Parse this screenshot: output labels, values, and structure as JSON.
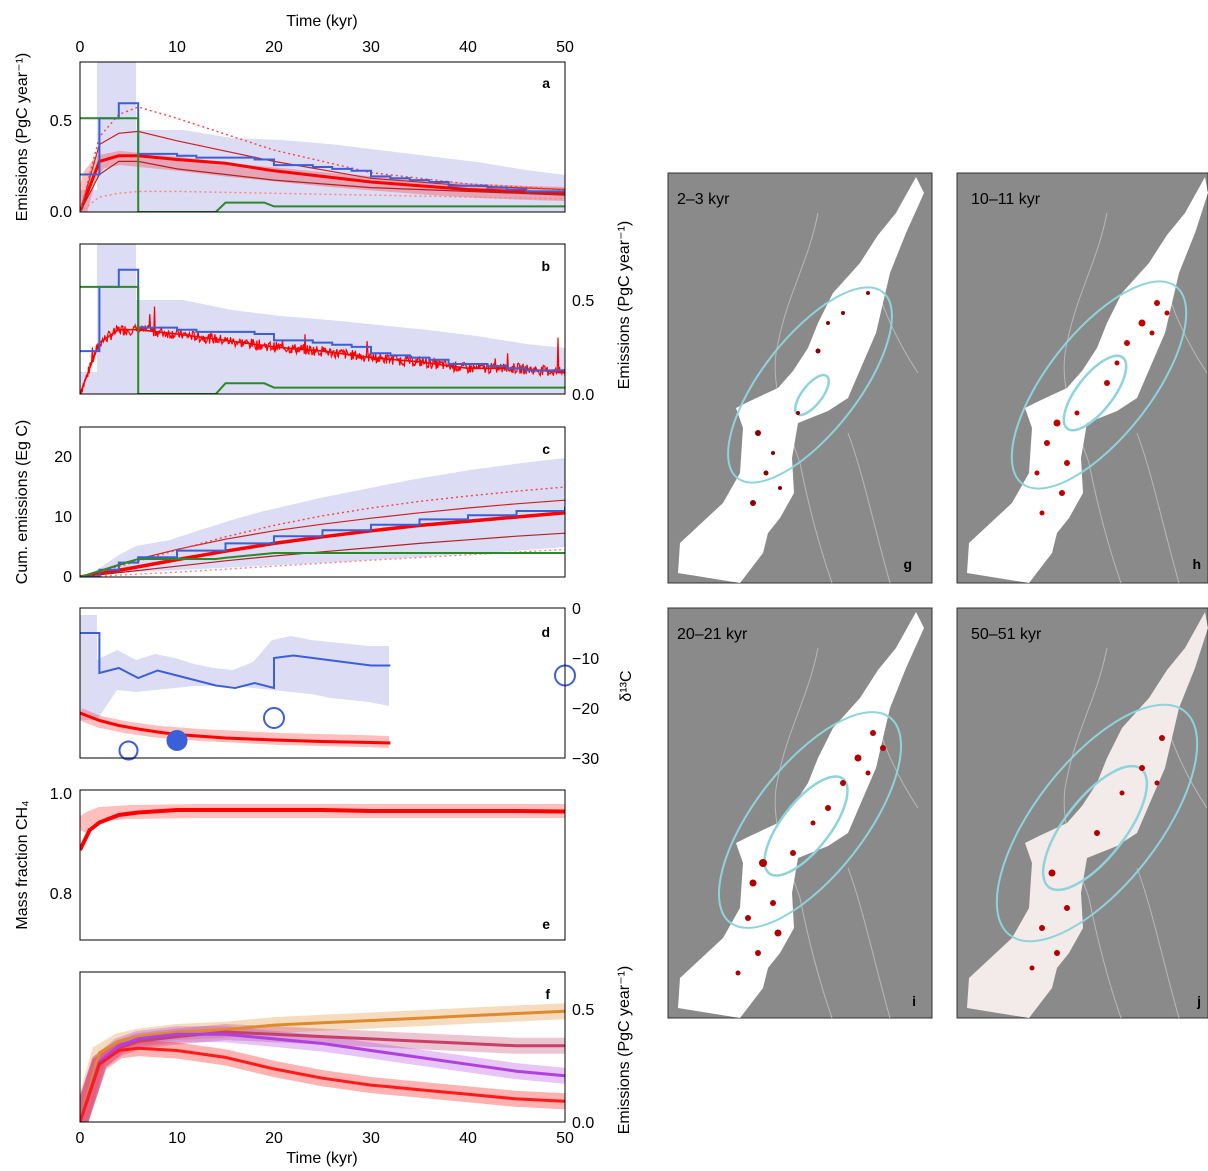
{
  "figure": {
    "time_axis_label": "Time (kyr)",
    "time_ticks": [
      "0",
      "10",
      "20",
      "30",
      "40",
      "50"
    ]
  },
  "colors": {
    "model_red": "#ff0000",
    "model_dark_red": "#b22222",
    "obs_blue": "#3a5fd9",
    "band_lavender": "#dcdcf5",
    "green": "#2a8a2a",
    "orange": "#e08a2c",
    "purple": "#b040e0",
    "map_bg": "#8a8a8a",
    "map_ellipse": "#8fd3dc"
  },
  "chart_data": [
    {
      "panel": "a",
      "type": "line",
      "ylabel": "Emissions (PgC year⁻¹)",
      "yticks": [
        "0.0",
        "0.5"
      ],
      "xlim": [
        0,
        50
      ],
      "ylim": [
        0,
        0.8
      ],
      "series": [
        {
          "x": [
            0,
            2,
            4,
            6,
            10,
            15,
            20,
            25,
            30,
            35,
            40,
            45,
            50
          ],
          "y": [
            0,
            0.27,
            0.3,
            0.3,
            0.28,
            0.26,
            0.22,
            0.19,
            0.16,
            0.14,
            0.12,
            0.11,
            0.1
          ]
        },
        {
          "x": [
            0,
            2,
            4,
            6,
            10,
            20,
            30,
            40,
            50
          ],
          "y": [
            0,
            0.36,
            0.42,
            0.43,
            0.38,
            0.27,
            0.18,
            0.14,
            0.12
          ]
        },
        {
          "x": [
            0,
            2,
            4,
            6,
            10,
            20,
            30,
            40,
            50
          ],
          "y": [
            0,
            0.2,
            0.27,
            0.27,
            0.23,
            0.17,
            0.13,
            0.11,
            0.09
          ]
        },
        {
          "x": [
            0,
            2,
            4,
            6,
            10,
            20,
            30,
            40,
            50
          ],
          "y": [
            0,
            0.4,
            0.52,
            0.56,
            0.5,
            0.33,
            0.21,
            0.15,
            0.12
          ]
        },
        {
          "x": [
            0,
            2,
            4,
            6,
            10,
            20,
            30,
            40,
            50
          ],
          "y": [
            0,
            0.08,
            0.1,
            0.11,
            0.11,
            0.1,
            0.09,
            0.08,
            0.07
          ]
        },
        {
          "x": [
            0,
            2,
            4,
            6,
            8,
            10,
            12,
            14,
            16,
            18,
            20,
            22,
            24,
            26,
            28,
            30,
            32,
            34,
            36,
            38,
            40,
            42,
            44,
            46,
            48,
            50
          ],
          "y": [
            0.2,
            0.5,
            0.58,
            0.31,
            0.31,
            0.3,
            0.29,
            0.29,
            0.29,
            0.28,
            0.25,
            0.25,
            0.24,
            0.23,
            0.22,
            0.19,
            0.18,
            0.17,
            0.16,
            0.14,
            0.14,
            0.13,
            0.12,
            0.11,
            0.11,
            0.1
          ]
        },
        {
          "x": [
            0,
            6,
            6,
            14,
            15,
            19,
            20,
            50
          ],
          "y": [
            0.5,
            0.5,
            0,
            0,
            0.05,
            0.05,
            0.03,
            0.03
          ]
        }
      ]
    },
    {
      "panel": "b",
      "type": "line",
      "ylabel": "Emissions (PgC year⁻¹)",
      "yticks": [
        "0.0",
        "0.5"
      ],
      "xlim": [
        0,
        50
      ],
      "ylim": [
        0,
        0.7
      ],
      "series": [
        {
          "x": [
            0,
            2,
            4,
            6,
            10,
            15,
            20,
            25,
            30,
            35,
            40,
            45,
            50
          ],
          "y": [
            0,
            0.24,
            0.3,
            0.3,
            0.28,
            0.25,
            0.22,
            0.2,
            0.17,
            0.15,
            0.12,
            0.12,
            0.1
          ]
        },
        {
          "x": [
            0,
            2,
            4,
            6,
            8,
            10,
            12,
            14,
            16,
            18,
            20,
            22,
            24,
            26,
            28,
            30,
            32,
            34,
            36,
            38,
            40,
            42,
            44,
            46,
            48,
            50
          ],
          "y": [
            0.2,
            0.5,
            0.58,
            0.31,
            0.31,
            0.3,
            0.29,
            0.29,
            0.29,
            0.28,
            0.25,
            0.25,
            0.24,
            0.23,
            0.22,
            0.19,
            0.18,
            0.17,
            0.16,
            0.14,
            0.14,
            0.13,
            0.12,
            0.11,
            0.11,
            0.1
          ]
        },
        {
          "x": [
            0,
            6,
            6,
            14,
            15,
            19,
            20,
            50
          ],
          "y": [
            0.5,
            0.5,
            0,
            0,
            0.05,
            0.05,
            0.03,
            0.03
          ]
        }
      ]
    },
    {
      "panel": "c",
      "type": "line",
      "ylabel": "Cum. emissions (Eg C)",
      "yticks": [
        "0",
        "10",
        "20"
      ],
      "xlim": [
        0,
        50
      ],
      "ylim": [
        0,
        25
      ],
      "series": [
        {
          "x": [
            0,
            5,
            10,
            15,
            20,
            25,
            30,
            35,
            40,
            45,
            50
          ],
          "y": [
            0,
            1.4,
            2.9,
            4.3,
            5.6,
            6.7,
            7.7,
            8.6,
            9.3,
            10,
            10.7
          ]
        },
        {
          "x": [
            0,
            5,
            10,
            15,
            20,
            25,
            30,
            35,
            40,
            45,
            50
          ],
          "y": [
            0,
            2.6,
            4.6,
            6.3,
            7.7,
            8.8,
            9.8,
            10.7,
            11.5,
            12.2,
            12.8
          ]
        },
        {
          "x": [
            0,
            5,
            10,
            15,
            20,
            25,
            30,
            35,
            40,
            45,
            50
          ],
          "y": [
            0,
            0.9,
            1.8,
            2.7,
            3.5,
            4.2,
            4.9,
            5.6,
            6.2,
            6.8,
            7.3
          ]
        },
        {
          "x": [
            0,
            5,
            10,
            15,
            20,
            25,
            30,
            35,
            40,
            45,
            50
          ],
          "y": [
            0,
            2.2,
            4.5,
            6.7,
            8.6,
            10.2,
            11.5,
            12.6,
            13.5,
            14.3,
            15
          ]
        },
        {
          "x": [
            0,
            10,
            20,
            30,
            40,
            50
          ],
          "y": [
            0,
            0.8,
            1.8,
            2.8,
            3.7,
            4.6
          ]
        },
        {
          "x": [
            0,
            2,
            4,
            6,
            10,
            15,
            20,
            25,
            30,
            35,
            40,
            45,
            50
          ],
          "y": [
            0,
            1.2,
            2.4,
            3.3,
            4.4,
            5.6,
            6.8,
            7.8,
            8.7,
            9.6,
            10.3,
            11,
            11.7
          ]
        },
        {
          "x": [
            0,
            6,
            14,
            15,
            20,
            50
          ],
          "y": [
            0,
            3,
            3,
            3.2,
            4,
            4
          ]
        }
      ]
    },
    {
      "panel": "d",
      "type": "line",
      "ylabel": "δ¹³C",
      "yticks": [
        "0",
        "−10",
        "−20",
        "−30"
      ],
      "xlim": [
        0,
        50
      ],
      "ylim": [
        -30,
        0
      ],
      "series": [
        {
          "x": [
            0,
            2,
            4,
            6,
            8,
            10,
            15,
            20,
            25,
            30,
            32
          ],
          "y": [
            -21,
            -22.5,
            -23.5,
            -24.2,
            -24.8,
            -25.3,
            -26,
            -26.4,
            -26.7,
            -26.9,
            -27
          ]
        },
        {
          "x": [
            0,
            2,
            2,
            4,
            6,
            8,
            10,
            12,
            14,
            16,
            18,
            20,
            20,
            22,
            24,
            26,
            28,
            30,
            32
          ],
          "y": [
            -5,
            -5,
            -13,
            -12,
            -14,
            -12.5,
            -13.5,
            -14.5,
            -15.5,
            -16,
            -15,
            -16,
            -10,
            -9.5,
            -10,
            -10.5,
            -11,
            -11.5,
            -11.5
          ]
        },
        {
          "x": [
            5
          ],
          "y": [
            -28.5
          ]
        },
        {
          "x": [
            10
          ],
          "y": [
            -26.5
          ]
        },
        {
          "x": [
            20
          ],
          "y": [
            -22
          ]
        },
        {
          "x": [
            50
          ],
          "y": [
            -13.5
          ]
        }
      ]
    },
    {
      "panel": "e",
      "type": "line",
      "ylabel": "Mass fraction CH₄",
      "yticks": [
        "0.8",
        "1.0"
      ],
      "xlim": [
        0,
        50
      ],
      "ylim": [
        0.7,
        1.0
      ],
      "series": [
        {
          "x": [
            0,
            1,
            2,
            4,
            6,
            10,
            15,
            20,
            25,
            30,
            35,
            40,
            45,
            50
          ],
          "y": [
            0.88,
            0.92,
            0.935,
            0.95,
            0.955,
            0.96,
            0.96,
            0.96,
            0.96,
            0.958,
            0.958,
            0.958,
            0.958,
            0.957
          ]
        }
      ]
    },
    {
      "panel": "f",
      "type": "line",
      "ylabel": "Emissions (PgC year⁻¹)",
      "yticks": [
        "0.0",
        "0.5"
      ],
      "xlim": [
        0,
        50
      ],
      "ylim": [
        0,
        0.65
      ],
      "series": [
        {
          "x": [
            0,
            2,
            4,
            6,
            10,
            15,
            20,
            25,
            30,
            35,
            40,
            45,
            50
          ],
          "y": [
            0,
            0.3,
            0.35,
            0.37,
            0.39,
            0.4,
            0.42,
            0.43,
            0.44,
            0.45,
            0.46,
            0.47,
            0.48
          ]
        },
        {
          "x": [
            0,
            2,
            4,
            6,
            10,
            15,
            20,
            25,
            30,
            35,
            40,
            45,
            50
          ],
          "y": [
            0,
            0.26,
            0.33,
            0.36,
            0.38,
            0.38,
            0.36,
            0.34,
            0.31,
            0.28,
            0.25,
            0.22,
            0.2
          ]
        },
        {
          "x": [
            0,
            2,
            4,
            6,
            10,
            15,
            20,
            25,
            30,
            35,
            40,
            45,
            50
          ],
          "y": [
            0,
            0.26,
            0.32,
            0.35,
            0.37,
            0.39,
            0.38,
            0.37,
            0.36,
            0.35,
            0.34,
            0.33,
            0.33
          ]
        },
        {
          "x": [
            0,
            2,
            4,
            6,
            10,
            15,
            20,
            25,
            30,
            35,
            40,
            45,
            50
          ],
          "y": [
            0,
            0.25,
            0.31,
            0.32,
            0.31,
            0.28,
            0.23,
            0.19,
            0.16,
            0.14,
            0.12,
            0.1,
            0.09
          ]
        }
      ]
    }
  ],
  "panel_letters": [
    "a",
    "b",
    "c",
    "d",
    "e",
    "f"
  ],
  "maps": [
    {
      "time_label": "2–3 kyr",
      "letter": "g"
    },
    {
      "time_label": "10–11 kyr",
      "letter": "h"
    },
    {
      "time_label": "20–21 kyr",
      "letter": "i"
    },
    {
      "time_label": "50–51 kyr",
      "letter": "j"
    }
  ]
}
